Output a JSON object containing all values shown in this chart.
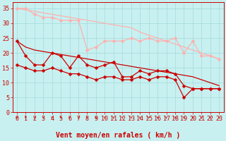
{
  "title": "",
  "xlabel": "Vent moyen/en rafales ( km/h )",
  "bg_color": "#c8f0f0",
  "grid_color": "#aadddd",
  "xlim": [
    -0.5,
    23.5
  ],
  "ylim": [
    0,
    37
  ],
  "yticks": [
    0,
    5,
    10,
    15,
    20,
    25,
    30,
    35
  ],
  "xticks": [
    0,
    1,
    2,
    3,
    4,
    5,
    6,
    7,
    8,
    9,
    10,
    11,
    12,
    13,
    14,
    15,
    16,
    17,
    18,
    19,
    20,
    21,
    22,
    23
  ],
  "line_pink1": {
    "x": [
      0,
      1,
      2,
      3,
      4,
      5,
      6,
      7,
      8,
      9,
      10,
      11,
      12,
      13,
      14,
      15,
      16,
      17,
      18,
      19,
      20,
      21,
      22,
      23
    ],
    "y": [
      35,
      34.5,
      34,
      33.5,
      33,
      32.5,
      32,
      31.5,
      31,
      30.5,
      30,
      29.5,
      29,
      28.5,
      27,
      26,
      25,
      24,
      23,
      22,
      21,
      20,
      19,
      18
    ],
    "color": "#ffb0b0",
    "lw": 0.9
  },
  "line_pink2": {
    "x": [
      0,
      1,
      2,
      3,
      4,
      5,
      6,
      7,
      8,
      9,
      10,
      11,
      12,
      13,
      14,
      15,
      16,
      17,
      18,
      19,
      20,
      21,
      22,
      23
    ],
    "y": [
      35,
      35,
      33,
      32,
      32,
      31,
      31,
      31,
      21,
      22,
      24,
      24,
      24,
      25,
      24,
      25,
      24,
      24,
      25,
      20,
      24,
      19,
      19,
      18
    ],
    "color": "#ffb0b0",
    "lw": 0.9,
    "marker": "D",
    "ms": 2.5
  },
  "line_red1": {
    "x": [
      0,
      1,
      2,
      3,
      4,
      5,
      6,
      7,
      8,
      9,
      10,
      11,
      12,
      13,
      14,
      15,
      16,
      17,
      18,
      19,
      20,
      21,
      22,
      23
    ],
    "y": [
      24,
      22,
      21,
      20.5,
      20,
      19.5,
      19,
      18.5,
      18,
      17.5,
      17,
      16.5,
      16,
      15.5,
      15,
      14.5,
      14,
      13.5,
      13,
      12.5,
      12,
      11,
      10,
      9
    ],
    "color": "#cc0000",
    "lw": 0.9
  },
  "line_red2": {
    "x": [
      0,
      1,
      2,
      3,
      4,
      5,
      6,
      7,
      8,
      9,
      10,
      11,
      12,
      13,
      14,
      15,
      16,
      17,
      18,
      19,
      20,
      21,
      22,
      23
    ],
    "y": [
      24,
      19,
      16,
      16,
      20,
      19,
      15,
      19,
      16,
      15,
      16,
      17,
      12,
      12,
      14,
      13,
      14,
      14,
      13,
      9,
      8,
      8,
      8,
      8
    ],
    "color": "#cc0000",
    "lw": 0.9,
    "marker": "D",
    "ms": 2.5
  },
  "line_red3": {
    "x": [
      0,
      1,
      2,
      3,
      4,
      5,
      6,
      7,
      8,
      9,
      10,
      11,
      12,
      13,
      14,
      15,
      16,
      17,
      18,
      19,
      20,
      21,
      22,
      23
    ],
    "y": [
      16,
      15,
      14,
      14,
      15,
      14,
      13,
      13,
      12,
      11,
      12,
      12,
      11,
      11,
      12,
      11,
      12,
      12,
      11,
      5,
      8,
      8,
      8,
      8
    ],
    "color": "#cc0000",
    "lw": 0.9,
    "marker": "D",
    "ms": 2.5
  },
  "arrow_color": "#cc0000",
  "tick_color": "#cc0000",
  "label_color": "#cc0000",
  "tick_fontsize": 6,
  "label_fontsize": 7
}
